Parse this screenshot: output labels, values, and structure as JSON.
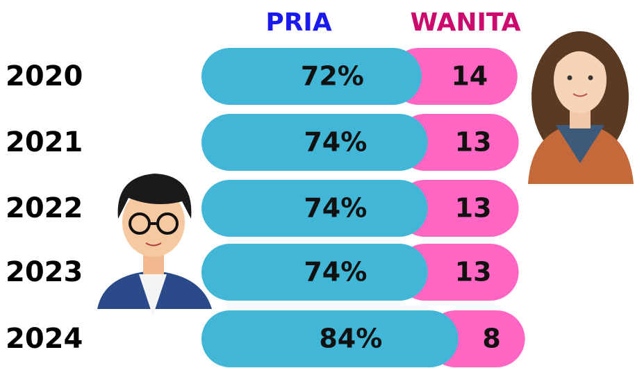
{
  "chart_data": {
    "type": "bar",
    "categories": [
      "2020",
      "2021",
      "2022",
      "2023",
      "2024"
    ],
    "series": [
      {
        "name": "PRIA",
        "color": "#42b6d6",
        "values": [
          72,
          74,
          74,
          74,
          84
        ],
        "value_labels": [
          "72%",
          "74%",
          "74%",
          "74%",
          "84%"
        ]
      },
      {
        "name": "WANITA",
        "color": "#ff66c4",
        "values": [
          14,
          13,
          13,
          13,
          8
        ]
      }
    ],
    "legend_colors": [
      "#1a1aee",
      "#cc0a6e"
    ]
  }
}
